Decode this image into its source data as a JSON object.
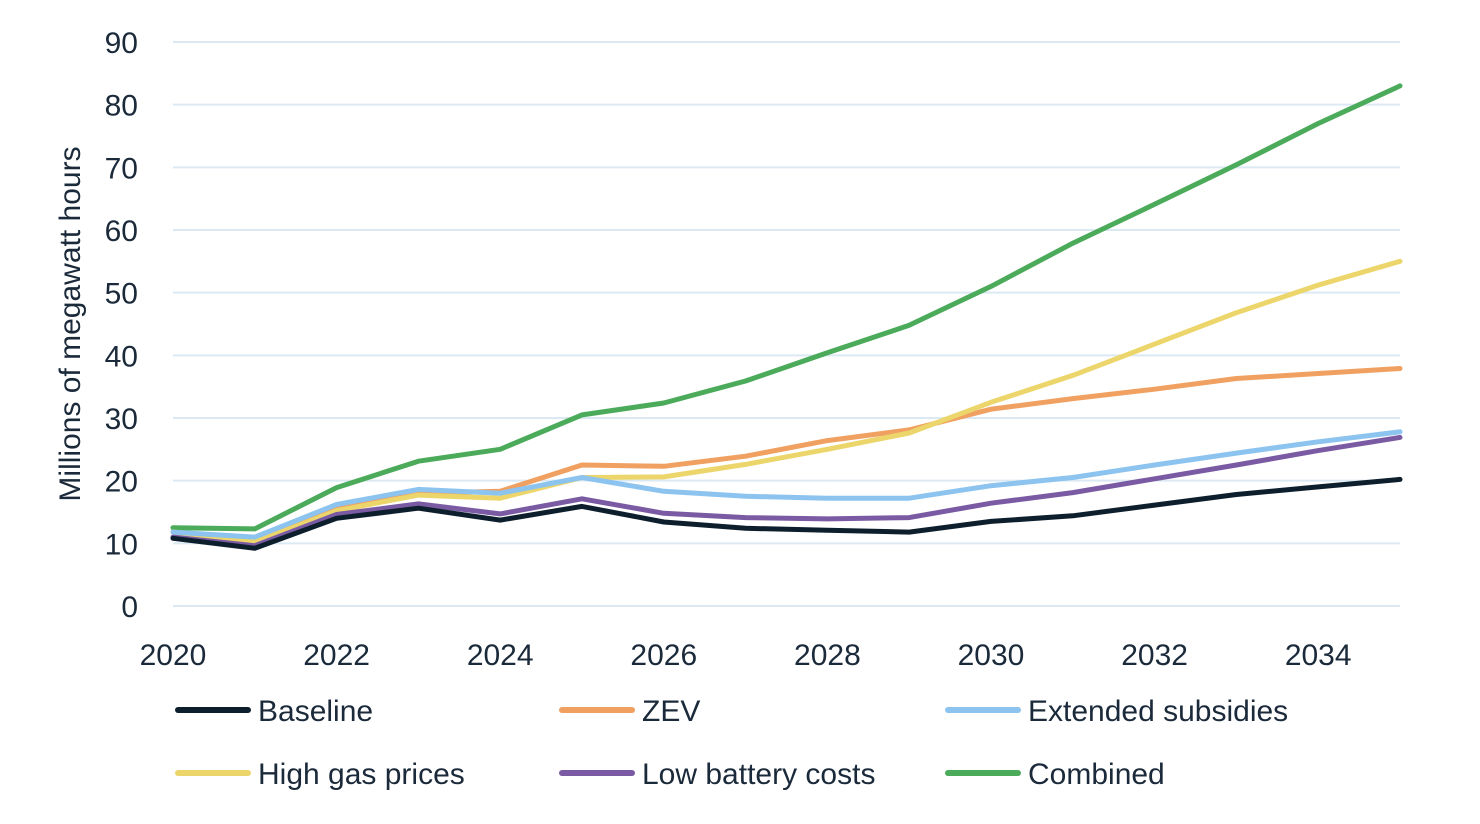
{
  "chart_data": {
    "type": "line",
    "title": "",
    "xlabel": "",
    "ylabel": "Millions of megawatt hours",
    "xlim": [
      2020,
      2035
    ],
    "ylim": [
      0,
      90
    ],
    "x_ticks": [
      2020,
      2022,
      2024,
      2026,
      2028,
      2030,
      2032,
      2034
    ],
    "y_ticks": [
      0,
      10,
      20,
      30,
      40,
      50,
      60,
      70,
      80,
      90
    ],
    "grid": "horizontal",
    "legend_position": "bottom",
    "x": [
      2020,
      2021,
      2022,
      2023,
      2024,
      2025,
      2026,
      2027,
      2028,
      2029,
      2030,
      2031,
      2032,
      2033,
      2034,
      2035
    ],
    "series": [
      {
        "name": "Baseline",
        "color": "#0d1f2d",
        "values": [
          10.8,
          9.2,
          14.0,
          15.6,
          13.7,
          15.9,
          13.4,
          12.4,
          12.1,
          11.8,
          13.5,
          14.4,
          16.1,
          17.8,
          19.0,
          20.2
        ]
      },
      {
        "name": "ZEV",
        "color": "#f0a061",
        "values": [
          11.8,
          10.6,
          15.7,
          18.0,
          18.3,
          22.5,
          22.3,
          23.9,
          26.4,
          28.1,
          31.4,
          33.1,
          34.6,
          36.3,
          37.1,
          37.9
        ]
      },
      {
        "name": "Extended subsidies",
        "color": "#8cc4ef",
        "values": [
          11.8,
          11.0,
          16.2,
          18.6,
          18.0,
          20.5,
          18.3,
          17.5,
          17.2,
          17.2,
          19.2,
          20.5,
          22.5,
          24.4,
          26.2,
          27.8
        ]
      },
      {
        "name": "High gas prices",
        "color": "#ecd66c",
        "values": [
          11.8,
          10.2,
          15.2,
          17.7,
          17.2,
          20.5,
          20.6,
          22.6,
          25.0,
          27.6,
          32.5,
          36.8,
          41.8,
          46.8,
          51.2,
          55.0
        ]
      },
      {
        "name": "Low battery costs",
        "color": "#7a5aa3",
        "values": [
          11.0,
          9.6,
          14.6,
          16.3,
          14.7,
          17.1,
          14.8,
          14.1,
          13.9,
          14.1,
          16.4,
          18.1,
          20.3,
          22.5,
          24.8,
          26.9
        ]
      },
      {
        "name": "Combined",
        "color": "#4bab5a",
        "values": [
          12.5,
          12.3,
          18.9,
          23.1,
          25.0,
          30.5,
          32.4,
          35.9,
          40.4,
          44.8,
          51.0,
          57.9,
          64.1,
          70.4,
          77.0,
          83.0
        ]
      }
    ]
  }
}
